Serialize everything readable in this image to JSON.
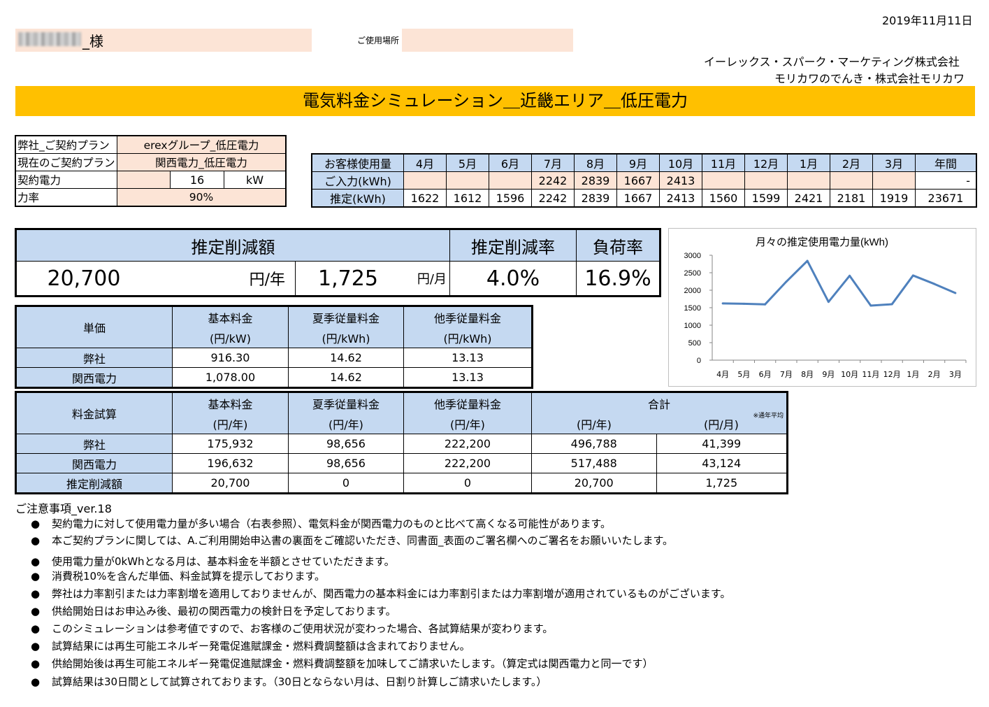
{
  "header": {
    "date": "2019年11月11日",
    "customer_suffix": "_様",
    "location_label": "ご使用場所",
    "company_line1": "イーレックス・スパーク・マーケティング株式会社",
    "company_line2": "モリカワのでんき・株式会社モリカワ",
    "title": "電気料金シミュレーション＿近畿エリア＿低圧電力"
  },
  "plan": {
    "rows": [
      {
        "label": "弊社_ご契約プラン",
        "value": "erexグループ_低圧電力"
      },
      {
        "label": "現在のご契約プラン",
        "value": "関西電力_低圧電力"
      }
    ],
    "contract_label": "契約電力",
    "contract_value": "16",
    "contract_unit": "kW",
    "pf_label": "力率",
    "pf_value": "90%"
  },
  "usage": {
    "header_label": "お客様使用量",
    "months": [
      "4月",
      "5月",
      "6月",
      "7月",
      "8月",
      "9月",
      "10月",
      "11月",
      "12月",
      "1月",
      "2月",
      "3月",
      "年間"
    ],
    "input_label": "ご入力(kWh)",
    "input": [
      "",
      "",
      "",
      "2242",
      "2839",
      "1667",
      "2413",
      "",
      "",
      "",
      "",
      "",
      "-"
    ],
    "est_label": "推定(kWh)",
    "est": [
      "1622",
      "1612",
      "1596",
      "2242",
      "2839",
      "1667",
      "2413",
      "1560",
      "1599",
      "2421",
      "2181",
      "1919",
      "23671"
    ]
  },
  "savings": {
    "h_amount": "推定削減額",
    "h_rate": "推定削減率",
    "h_load": "負荷率",
    "yearly": "20,700",
    "yearly_unit": "円/年",
    "monthly": "1,725",
    "monthly_unit": "円/月",
    "rate": "4.0%",
    "load": "16.9%"
  },
  "unit_price": {
    "title": "単価",
    "headers": [
      {
        "l1": "基本料金",
        "l2": "(円/kW)"
      },
      {
        "l1": "夏季従量料金",
        "l2": "(円/kWh)"
      },
      {
        "l1": "他季従量料金",
        "l2": "(円/kWh)"
      }
    ],
    "rows": [
      {
        "label": "弊社",
        "values": [
          "916.30",
          "14.62",
          "13.13"
        ]
      },
      {
        "label": "関西電力",
        "values": [
          "1,078.00",
          "14.62",
          "13.13"
        ]
      }
    ]
  },
  "fee": {
    "title": "料金試算",
    "headers": [
      {
        "l1": "基本料金",
        "l2": "(円/年)"
      },
      {
        "l1": "夏季従量料金",
        "l2": "(円/年)"
      },
      {
        "l1": "他季従量料金",
        "l2": "(円/年)"
      }
    ],
    "total_label": "合計",
    "total_year": "(円/年)",
    "total_month": "(円/月)",
    "total_note": "※通年平均",
    "rows": [
      {
        "label": "弊社",
        "values": [
          "175,932",
          "98,656",
          "222,200",
          "496,788",
          "41,399"
        ]
      },
      {
        "label": "関西電力",
        "values": [
          "196,632",
          "98,656",
          "222,200",
          "517,488",
          "43,124"
        ]
      },
      {
        "label": "推定削減額",
        "values": [
          "20,700",
          "0",
          "0",
          "20,700",
          "1,725"
        ]
      }
    ]
  },
  "notes": {
    "title": "ご注意事項_ver.18",
    "bullet": "●",
    "items": [
      "契約電力に対して使用電力量が多い場合（右表参照）、電気料金が関西電力のものと比べて高くなる可能性があります。",
      "本ご契約プランに関しては、A.ご利用開始申込書の裏面をご確認いただき、同書面_表面のご署名欄へのご署名をお願いいたします。",
      "使用電力量が0kWhとなる月は、基本料金を半額とさせていただきます。",
      "消費税10%を含んだ単価、料金試算を提示しております。",
      "弊社は力率割引または力率割増を適用しておりませんが、関西電力の基本料金には力率割引または力率割増が適用されているものがございます。",
      "供給開始日はお申込み後、最初の関西電力の検針日を予定しております。",
      "このシミュレーションは参考値ですので、お客様のご使用状況が変わった場合、各試算結果が変わります。",
      "試算結果には再生可能エネルギー発電促進賦課金・燃料費調整額は含まれておりません。",
      "供給開始後は再生可能エネルギー発電促進賦課金・燃料費調整額を加味してご請求いたします。（算定式は関西電力と同一です）",
      "試算結果は30日間として試算されております。（30日とならない月は、日割り計算しご請求いたします。）"
    ]
  },
  "chart_data": {
    "type": "line",
    "title": "月々の推定使用電力量(kWh)",
    "categories": [
      "4月",
      "5月",
      "6月",
      "7月",
      "8月",
      "9月",
      "10月",
      "11月",
      "12月",
      "1月",
      "2月",
      "3月"
    ],
    "values": [
      1622,
      1612,
      1596,
      2242,
      2839,
      1667,
      2413,
      1560,
      1599,
      2421,
      2181,
      1919
    ],
    "ylim": [
      0,
      3000
    ],
    "yticks": [
      "0",
      "500",
      "1000",
      "1500",
      "2000",
      "2500",
      "3000"
    ],
    "xlabel": "",
    "ylabel": "",
    "grid": false,
    "color": "#4f81bd"
  }
}
